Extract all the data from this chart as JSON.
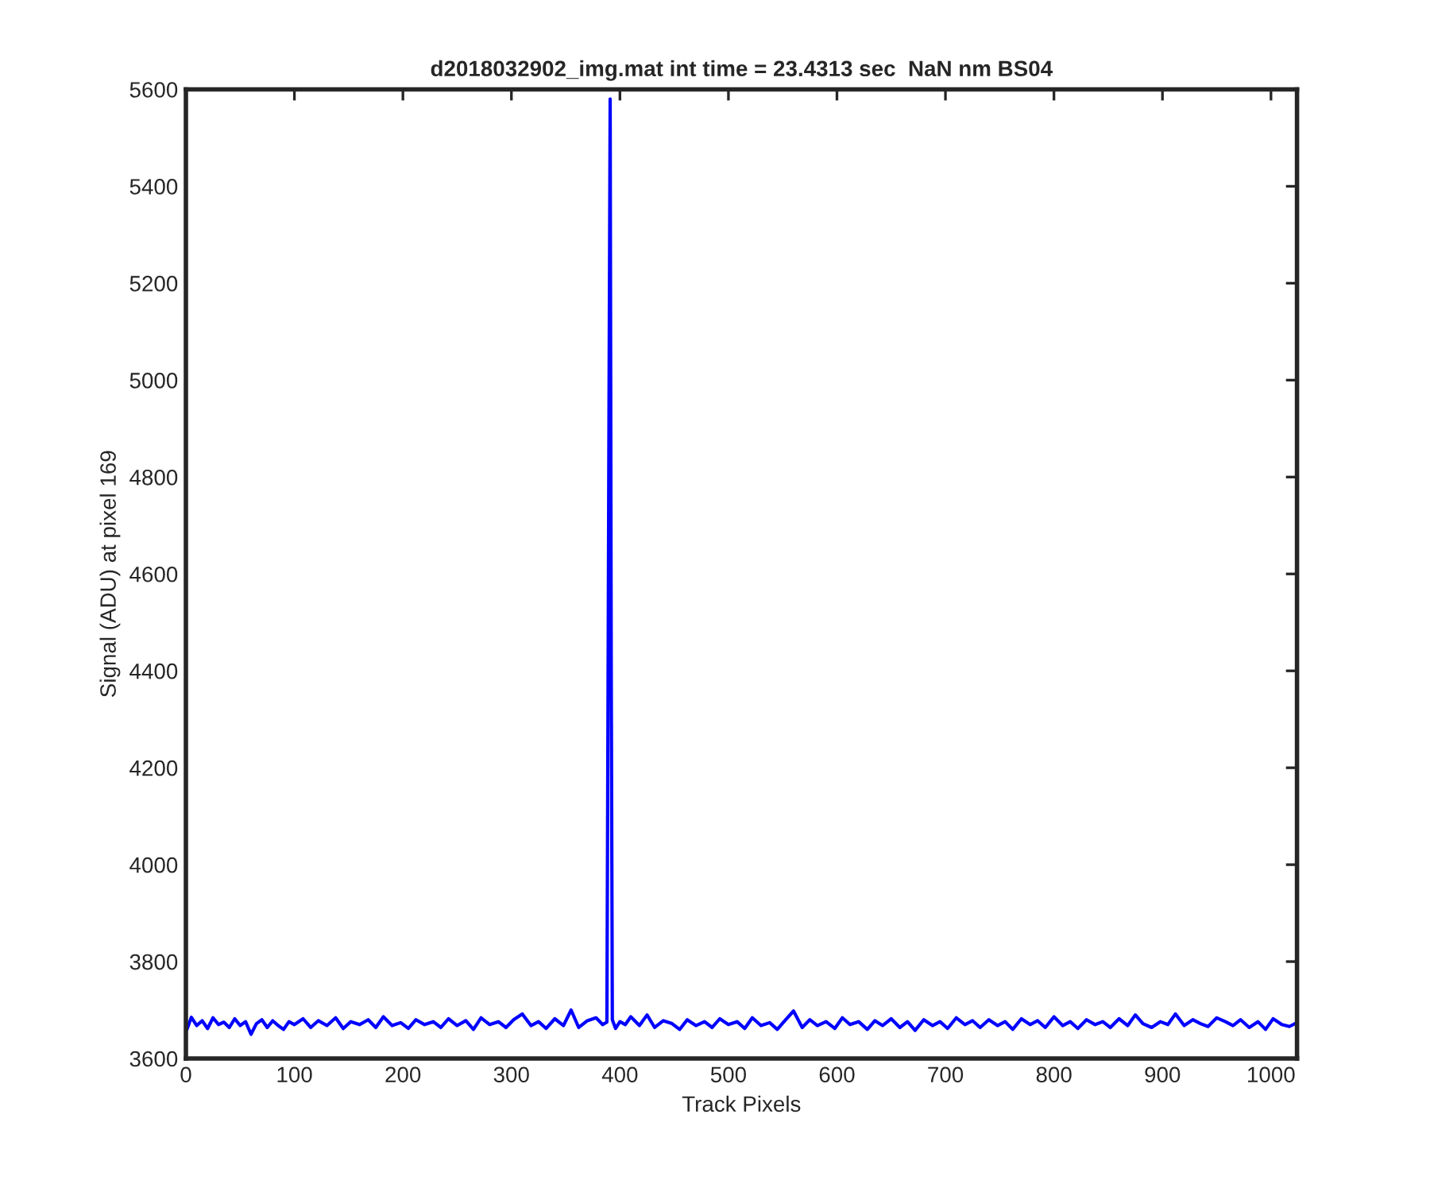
{
  "chart_data": {
    "type": "line",
    "title": "d2018032902_img.mat int time = 23.4313 sec  NaN nm BS04",
    "xlabel": "Track Pixels",
    "ylabel": "Signal (ADU) at pixel 169",
    "series": [
      {
        "color": "#0000ff",
        "x": [
          1,
          5,
          10,
          15,
          20,
          25,
          30,
          35,
          40,
          45,
          50,
          55,
          60,
          65,
          70,
          75,
          80,
          85,
          90,
          95,
          100,
          108,
          115,
          122,
          130,
          138,
          145,
          152,
          160,
          168,
          175,
          182,
          190,
          198,
          205,
          212,
          220,
          228,
          235,
          242,
          250,
          258,
          265,
          272,
          280,
          288,
          295,
          302,
          310,
          318,
          325,
          332,
          340,
          348,
          355,
          362,
          370,
          378,
          384,
          388,
          390,
          391,
          392,
          393,
          396,
          400,
          405,
          410,
          418,
          425,
          432,
          440,
          448,
          455,
          462,
          470,
          478,
          485,
          492,
          500,
          508,
          515,
          522,
          530,
          538,
          545,
          552,
          560,
          568,
          575,
          582,
          590,
          598,
          605,
          612,
          620,
          628,
          635,
          642,
          650,
          658,
          665,
          672,
          680,
          688,
          695,
          702,
          710,
          718,
          725,
          732,
          740,
          748,
          755,
          762,
          770,
          778,
          785,
          792,
          800,
          808,
          815,
          822,
          830,
          838,
          845,
          852,
          860,
          868,
          875,
          882,
          890,
          898,
          905,
          912,
          920,
          928,
          935,
          942,
          950,
          958,
          965,
          972,
          980,
          988,
          995,
          1002,
          1010,
          1017,
          1024
        ],
        "values": [
          3660,
          3685,
          3668,
          3678,
          3662,
          3684,
          3670,
          3675,
          3664,
          3682,
          3668,
          3676,
          3650,
          3672,
          3680,
          3664,
          3678,
          3668,
          3660,
          3676,
          3670,
          3682,
          3664,
          3678,
          3668,
          3684,
          3662,
          3676,
          3670,
          3680,
          3664,
          3686,
          3668,
          3674,
          3662,
          3680,
          3670,
          3676,
          3664,
          3682,
          3668,
          3678,
          3660,
          3684,
          3670,
          3676,
          3664,
          3680,
          3692,
          3668,
          3676,
          3662,
          3682,
          3668,
          3700,
          3664,
          3678,
          3684,
          3670,
          3675,
          4990,
          5580,
          4400,
          3680,
          3662,
          3676,
          3670,
          3686,
          3668,
          3690,
          3664,
          3678,
          3672,
          3660,
          3680,
          3668,
          3676,
          3664,
          3682,
          3670,
          3676,
          3662,
          3684,
          3668,
          3674,
          3660,
          3678,
          3698,
          3664,
          3680,
          3668,
          3676,
          3662,
          3684,
          3670,
          3676,
          3660,
          3678,
          3668,
          3682,
          3664,
          3676,
          3658,
          3680,
          3668,
          3676,
          3662,
          3684,
          3670,
          3678,
          3664,
          3680,
          3668,
          3676,
          3660,
          3682,
          3670,
          3678,
          3664,
          3686,
          3668,
          3676,
          3662,
          3680,
          3670,
          3676,
          3664,
          3682,
          3668,
          3690,
          3672,
          3664,
          3676,
          3670,
          3692,
          3668,
          3680,
          3672,
          3666,
          3684,
          3676,
          3668,
          3680,
          3664,
          3676,
          3660,
          3682,
          3670,
          3666,
          3674
        ]
      }
    ],
    "xlim": [
      0,
      1024
    ],
    "xticks": [
      0,
      100,
      200,
      300,
      400,
      500,
      600,
      700,
      800,
      900,
      1000
    ],
    "ylim": [
      3600,
      5600
    ],
    "yticks": [
      3600,
      3800,
      4000,
      4200,
      4400,
      4600,
      4800,
      5000,
      5200,
      5400,
      5600
    ],
    "grid": false
  }
}
